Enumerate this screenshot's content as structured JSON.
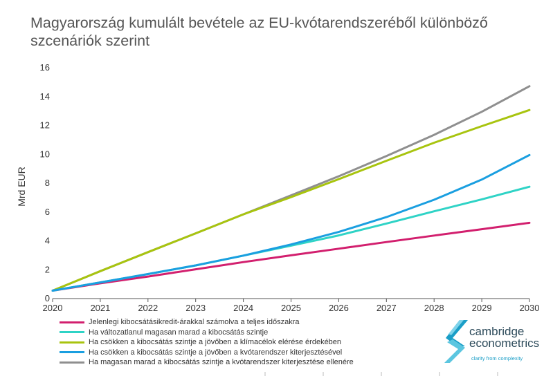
{
  "chart_data": {
    "type": "line",
    "title": "Magyarország kumulált bevétele az EU-kvótarendszeréből különböző szcenáriók szerint",
    "xlabel": "",
    "ylabel": "Mrd EUR",
    "xlim": [
      2020,
      2030
    ],
    "ylim": [
      0,
      16
    ],
    "x": [
      2020,
      2021,
      2022,
      2023,
      2024,
      2025,
      2026,
      2027,
      2028,
      2029,
      2030
    ],
    "x_tick_labels": [
      "2020",
      "2021",
      "2022",
      "2023",
      "2024",
      "2025",
      "2026",
      "2027",
      "2028",
      "2029",
      "2030"
    ],
    "y_tick_labels": [
      "0",
      "2",
      "4",
      "6",
      "8",
      "10",
      "12",
      "14",
      "16"
    ],
    "y_ticks": [
      0,
      2,
      4,
      6,
      8,
      10,
      12,
      14,
      16
    ],
    "grid": false,
    "legend_position": "bottom",
    "series": [
      {
        "name": "Jelenlegi kibocsátásikredit-árakkal számolva a teljes időszakra",
        "color": "#d21f6e",
        "values": [
          0.55,
          1.06,
          1.53,
          2.03,
          2.53,
          3.0,
          3.46,
          3.92,
          4.37,
          4.81,
          5.25
        ]
      },
      {
        "name": "Ha változatlanul magasan marad a kibocsátás szintje",
        "color": "#2fd3c6",
        "values": [
          0.55,
          1.12,
          1.7,
          2.3,
          2.98,
          3.67,
          4.38,
          5.2,
          6.05,
          6.88,
          7.75
        ]
      },
      {
        "name": "Ha csökken a kibocsátás szintje a jövőben a klímacélok elérése érdekében",
        "color": "#a8c40f",
        "values": [
          0.55,
          1.9,
          3.22,
          4.52,
          5.84,
          7.03,
          8.28,
          9.55,
          10.8,
          11.95,
          13.07
        ]
      },
      {
        "name": "Ha csökken a kibocsátás szintje a jövőben a kvótarendszer kiterjesztésével",
        "color": "#1a9fe0",
        "values": [
          0.55,
          1.12,
          1.7,
          2.3,
          2.98,
          3.75,
          4.62,
          5.65,
          6.85,
          8.25,
          9.95
        ]
      },
      {
        "name": "Ha magasan marad a kibocsátás szintje a kvótarendszer kiterjesztése ellenére",
        "color": "#8f8f8f",
        "values": [
          0.55,
          1.9,
          3.22,
          4.52,
          5.84,
          7.15,
          8.48,
          9.88,
          11.35,
          12.95,
          14.72
        ]
      }
    ]
  },
  "logo": {
    "line1": "cambridge",
    "line2": "econometrics",
    "tagline": "clarity from complexity",
    "brand_color": "#1a9ec7"
  }
}
